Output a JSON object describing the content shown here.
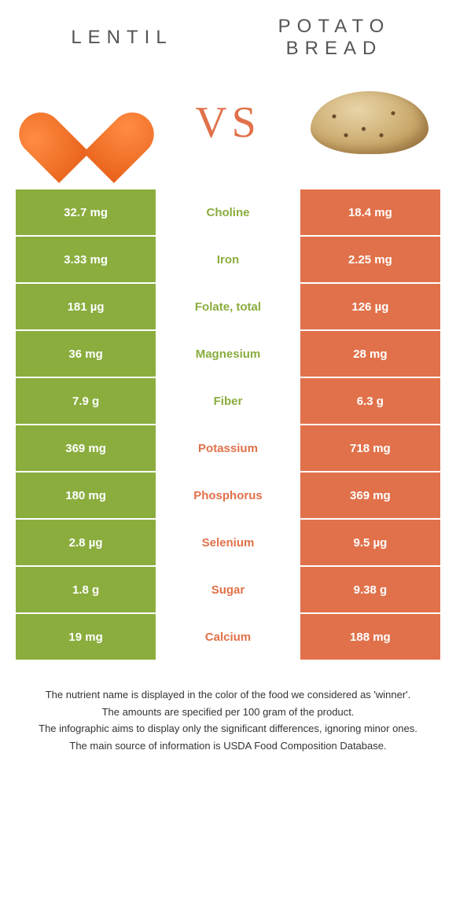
{
  "header": {
    "left_title": "LENTIL",
    "right_title": "POTATO BREAD",
    "vs_text": "VS"
  },
  "colors": {
    "green": "#8aad3e",
    "orange": "#e1714a",
    "white": "#ffffff"
  },
  "rows": [
    {
      "left": "32.7 mg",
      "label": "Choline",
      "right": "18.4 mg",
      "winner": "left"
    },
    {
      "left": "3.33 mg",
      "label": "Iron",
      "right": "2.25 mg",
      "winner": "left"
    },
    {
      "left": "181 µg",
      "label": "Folate, total",
      "right": "126 µg",
      "winner": "left"
    },
    {
      "left": "36 mg",
      "label": "Magnesium",
      "right": "28 mg",
      "winner": "left"
    },
    {
      "left": "7.9 g",
      "label": "Fiber",
      "right": "6.3 g",
      "winner": "left"
    },
    {
      "left": "369 mg",
      "label": "Potassium",
      "right": "718 mg",
      "winner": "right"
    },
    {
      "left": "180 mg",
      "label": "Phosphorus",
      "right": "369 mg",
      "winner": "right"
    },
    {
      "left": "2.8 µg",
      "label": "Selenium",
      "right": "9.5 µg",
      "winner": "right"
    },
    {
      "left": "1.8 g",
      "label": "Sugar",
      "right": "9.38 g",
      "winner": "right"
    },
    {
      "left": "19 mg",
      "label": "Calcium",
      "right": "188 mg",
      "winner": "right"
    }
  ],
  "footer": {
    "line1": "The nutrient name is displayed in the color of the food we considered as 'winner'.",
    "line2": "The amounts are specified per 100 gram of the product.",
    "line3": "The infographic aims to display only the significant differences, ignoring minor ones.",
    "line4": "The main source of information is USDA Food Composition Database."
  }
}
